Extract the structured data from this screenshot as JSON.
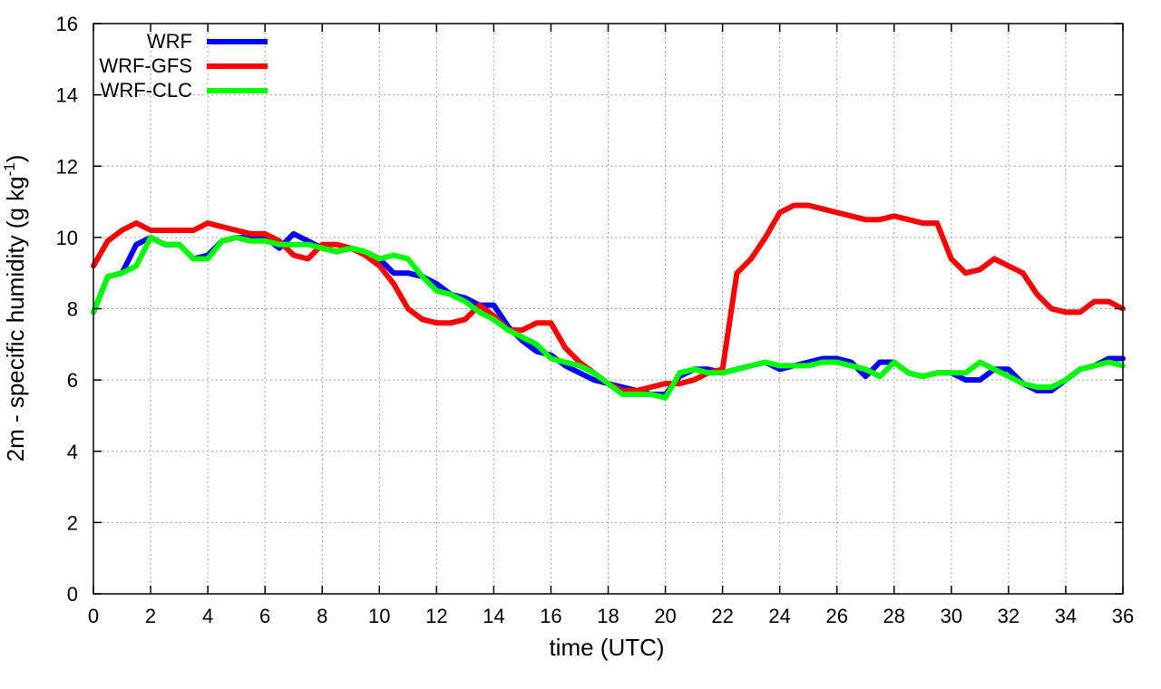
{
  "chart_data": {
    "type": "line",
    "xlabel": "time (UTC)",
    "ylabel": {
      "main": "2m - specific humidity (g kg",
      "sup": "-1",
      "close": ")"
    },
    "xlim": [
      0,
      36
    ],
    "ylim": [
      0,
      16
    ],
    "xticks": [
      0,
      2,
      4,
      6,
      8,
      10,
      12,
      14,
      16,
      18,
      20,
      22,
      24,
      26,
      28,
      30,
      32,
      34,
      36
    ],
    "yticks": [
      0,
      2,
      4,
      6,
      8,
      10,
      12,
      14,
      16
    ],
    "grid": true,
    "legend_position": "top-left",
    "series": [
      {
        "name": "WRF",
        "color": "#0000ff",
        "x": [
          0,
          0.5,
          1,
          1.5,
          2,
          2.5,
          3,
          3.5,
          4,
          4.5,
          5,
          5.5,
          6,
          6.5,
          7,
          7.5,
          8,
          8.5,
          9,
          9.5,
          10,
          10.5,
          11,
          11.5,
          12,
          12.5,
          13,
          13.5,
          14,
          14.5,
          15,
          15.5,
          16,
          16.5,
          17,
          17.5,
          18,
          18.5,
          19,
          19.5,
          20,
          20.5,
          21,
          21.5,
          22,
          22.5,
          23,
          23.5,
          24,
          24.5,
          25,
          25.5,
          26,
          26.5,
          27,
          27.5,
          28,
          28.5,
          29,
          29.5,
          30,
          30.5,
          31,
          31.5,
          32,
          32.5,
          33,
          33.5,
          34,
          34.5,
          35,
          35.5,
          36
        ],
        "y": [
          7.9,
          8.9,
          9.0,
          9.8,
          10.0,
          9.8,
          9.8,
          9.4,
          9.5,
          9.9,
          10.0,
          10.0,
          10.0,
          9.7,
          10.1,
          9.9,
          9.7,
          9.6,
          9.7,
          9.6,
          9.4,
          9.0,
          9.0,
          8.9,
          8.7,
          8.4,
          8.3,
          8.1,
          8.1,
          7.5,
          7.1,
          6.8,
          6.7,
          6.4,
          6.2,
          6.0,
          5.9,
          5.8,
          5.7,
          5.6,
          5.6,
          6.1,
          6.3,
          6.3,
          6.2,
          6.3,
          6.4,
          6.5,
          6.3,
          6.4,
          6.5,
          6.6,
          6.6,
          6.5,
          6.1,
          6.5,
          6.5,
          6.2,
          6.1,
          6.2,
          6.2,
          6.0,
          6.0,
          6.3,
          6.3,
          5.9,
          5.7,
          5.7,
          6.0,
          6.3,
          6.4,
          6.6,
          6.6
        ]
      },
      {
        "name": "WRF-GFS",
        "color": "#ff0000",
        "x": [
          0,
          0.5,
          1,
          1.5,
          2,
          2.5,
          3,
          3.5,
          4,
          4.5,
          5,
          5.5,
          6,
          6.5,
          7,
          7.5,
          8,
          8.5,
          9,
          9.5,
          10,
          10.5,
          11,
          11.5,
          12,
          12.5,
          13,
          13.5,
          14,
          14.5,
          15,
          15.5,
          16,
          16.5,
          17,
          17.5,
          18,
          18.5,
          19,
          19.5,
          20,
          20.5,
          21,
          21.5,
          22,
          22.5,
          23,
          23.5,
          24,
          24.5,
          25,
          25.5,
          26,
          26.5,
          27,
          27.5,
          28,
          28.5,
          29,
          29.5,
          30,
          30.5,
          31,
          31.5,
          32,
          32.5,
          33,
          33.5,
          34,
          34.5,
          35,
          35.5,
          36
        ],
        "y": [
          9.2,
          9.9,
          10.2,
          10.4,
          10.2,
          10.2,
          10.2,
          10.2,
          10.4,
          10.3,
          10.2,
          10.1,
          10.1,
          9.9,
          9.5,
          9.4,
          9.8,
          9.8,
          9.7,
          9.5,
          9.2,
          8.7,
          8.0,
          7.7,
          7.6,
          7.6,
          7.7,
          8.1,
          7.8,
          7.4,
          7.4,
          7.6,
          7.6,
          6.9,
          6.5,
          6.2,
          5.9,
          5.7,
          5.7,
          5.8,
          5.9,
          5.9,
          6.0,
          6.2,
          6.3,
          9.0,
          9.4,
          10.0,
          10.7,
          10.9,
          10.9,
          10.8,
          10.7,
          10.6,
          10.5,
          10.5,
          10.6,
          10.5,
          10.4,
          10.4,
          9.4,
          9.0,
          9.1,
          9.4,
          9.2,
          9.0,
          8.4,
          8.0,
          7.9,
          7.9,
          8.2,
          8.2,
          8.0
        ]
      },
      {
        "name": "WRF-CLC",
        "color": "#00ff00",
        "x": [
          0,
          0.5,
          1,
          1.5,
          2,
          2.5,
          3,
          3.5,
          4,
          4.5,
          5,
          5.5,
          6,
          6.5,
          7,
          7.5,
          8,
          8.5,
          9,
          9.5,
          10,
          10.5,
          11,
          11.5,
          12,
          12.5,
          13,
          13.5,
          14,
          14.5,
          15,
          15.5,
          16,
          16.5,
          17,
          17.5,
          18,
          18.5,
          19,
          19.5,
          20,
          20.5,
          21,
          21.5,
          22,
          22.5,
          23,
          23.5,
          24,
          24.5,
          25,
          25.5,
          26,
          26.5,
          27,
          27.5,
          28,
          28.5,
          29,
          29.5,
          30,
          30.5,
          31,
          31.5,
          32,
          32.5,
          33,
          33.5,
          34,
          34.5,
          35,
          35.5,
          36
        ],
        "y": [
          7.9,
          8.9,
          9.0,
          9.2,
          10.0,
          9.8,
          9.8,
          9.4,
          9.4,
          9.9,
          10.0,
          9.9,
          9.9,
          9.8,
          9.8,
          9.8,
          9.7,
          9.6,
          9.7,
          9.6,
          9.4,
          9.5,
          9.4,
          8.9,
          8.5,
          8.4,
          8.2,
          7.9,
          7.7,
          7.4,
          7.2,
          7.0,
          6.6,
          6.5,
          6.4,
          6.2,
          5.9,
          5.6,
          5.6,
          5.6,
          5.5,
          6.2,
          6.3,
          6.2,
          6.2,
          6.3,
          6.4,
          6.5,
          6.4,
          6.4,
          6.4,
          6.5,
          6.5,
          6.4,
          6.3,
          6.1,
          6.5,
          6.2,
          6.1,
          6.2,
          6.2,
          6.2,
          6.5,
          6.3,
          6.1,
          5.9,
          5.8,
          5.8,
          6.0,
          6.3,
          6.4,
          6.5,
          6.4
        ]
      }
    ]
  }
}
